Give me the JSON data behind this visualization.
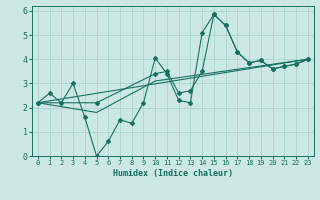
{
  "xlabel": "Humidex (Indice chaleur)",
  "ylabel": "",
  "bg_color": "#cce8e4",
  "grid_color": "#aad4ce",
  "line_color": "#1a7060",
  "xlim": [
    -0.5,
    23.5
  ],
  "ylim": [
    0,
    6.2
  ],
  "xticks": [
    0,
    1,
    2,
    3,
    4,
    5,
    6,
    7,
    8,
    9,
    10,
    11,
    12,
    13,
    14,
    15,
    16,
    17,
    18,
    19,
    20,
    21,
    22,
    23
  ],
  "yticks": [
    0,
    1,
    2,
    3,
    4,
    5,
    6
  ],
  "line1_x": [
    0,
    1,
    2,
    3,
    4,
    5,
    6,
    7,
    8,
    9,
    10,
    11,
    12,
    13,
    14,
    15,
    16,
    17,
    18,
    19,
    20,
    21,
    22,
    23
  ],
  "line1_y": [
    2.2,
    2.6,
    2.2,
    3.0,
    1.6,
    0.0,
    0.6,
    1.5,
    1.35,
    2.2,
    4.05,
    3.4,
    2.3,
    2.2,
    5.1,
    5.85,
    5.4,
    4.3,
    3.85,
    3.95,
    3.6,
    3.7,
    3.8,
    4.0
  ],
  "line2_x": [
    0,
    5,
    10,
    11,
    12,
    13,
    14,
    15,
    16,
    17,
    18,
    19,
    20,
    21,
    22,
    23
  ],
  "line2_y": [
    2.2,
    2.2,
    3.4,
    3.5,
    2.6,
    2.7,
    3.5,
    5.85,
    5.4,
    4.3,
    3.85,
    3.95,
    3.6,
    3.7,
    3.8,
    4.0
  ],
  "line3_x": [
    0,
    5,
    10,
    23
  ],
  "line3_y": [
    2.2,
    1.8,
    3.1,
    4.0
  ],
  "line4_x": [
    0,
    23
  ],
  "line4_y": [
    2.2,
    4.0
  ]
}
